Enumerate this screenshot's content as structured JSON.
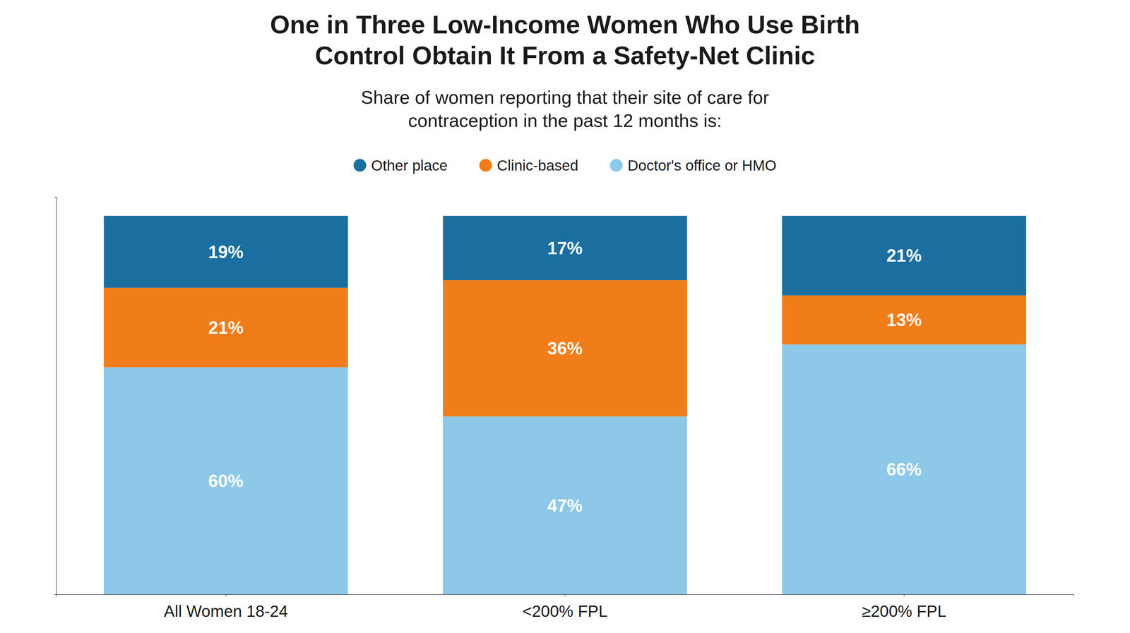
{
  "chart_data": {
    "type": "bar",
    "stacked": true,
    "title": [
      "One in Three Low-Income Women Who Use Birth",
      "Control Obtain It From a Safety-Net Clinic"
    ],
    "subtitle": [
      "Share of women reporting that their site of care for",
      "contraception in the past 12 months is:"
    ],
    "categories": [
      "All Women 18-24",
      "<200% FPL",
      "≥200% FPL"
    ],
    "series": [
      {
        "name": "Doctor's office or HMO",
        "color": "#8DC8E8",
        "values": [
          60,
          47,
          66
        ],
        "value_labels": [
          "60%",
          "47%",
          "66%"
        ]
      },
      {
        "name": "Clinic-based",
        "color": "#F07D1A",
        "values": [
          21,
          36,
          13
        ],
        "value_labels": [
          "21%",
          "36%",
          "13%"
        ]
      },
      {
        "name": "Other place",
        "color": "#1A6FA0",
        "values": [
          19,
          17,
          21
        ],
        "value_labels": [
          "19%",
          "17%",
          "21%"
        ]
      }
    ],
    "ylim": [
      0,
      105
    ],
    "yticks": [],
    "tick_labels": "x",
    "data_labels": true,
    "grid": false,
    "legend": "top"
  }
}
